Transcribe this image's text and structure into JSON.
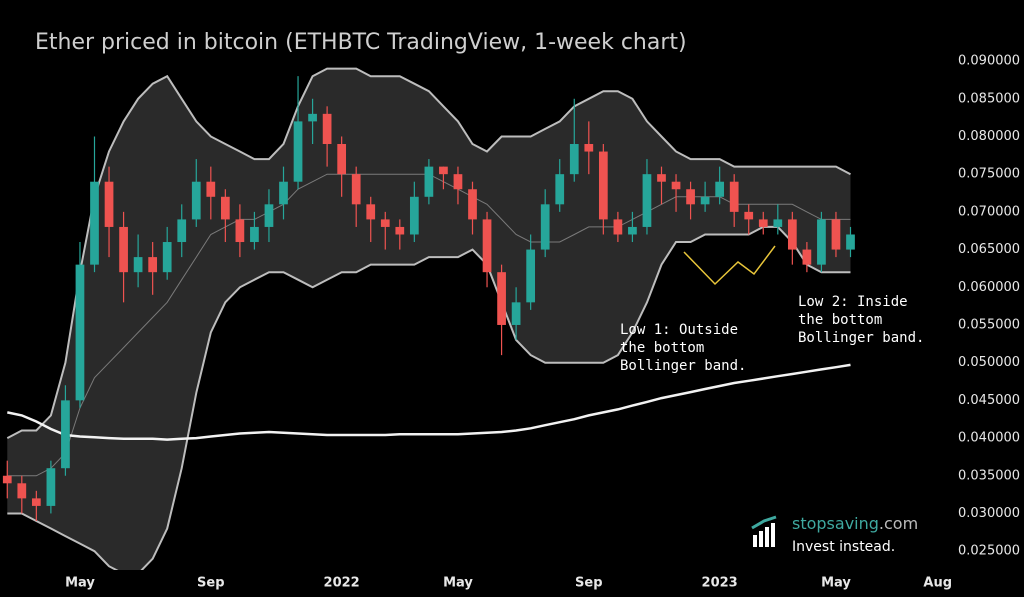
{
  "chart_data": {
    "type": "candlestick",
    "title": "Ether priced in bitcoin (ETHBTC TradingView, 1-week chart)",
    "categories": [
      null,
      null,
      null,
      null,
      null,
      "May",
      null,
      null,
      null,
      null,
      null,
      null,
      null,
      null,
      "Sep",
      null,
      null,
      null,
      null,
      null,
      null,
      null,
      null,
      "2022",
      null,
      null,
      null,
      null,
      null,
      null,
      null,
      "May",
      null,
      null,
      null,
      null,
      null,
      null,
      null,
      null,
      "Sep",
      null,
      null,
      null,
      null,
      null,
      null,
      null,
      null,
      "2023",
      null,
      null,
      null,
      null,
      null,
      null,
      null,
      "May",
      null,
      null,
      null,
      null,
      null,
      null,
      "Aug"
    ],
    "open": [
      0.035,
      0.034,
      0.032,
      0.031,
      0.036,
      0.045,
      0.063,
      0.074,
      0.068,
      0.062,
      0.064,
      0.062,
      0.066,
      0.069,
      0.074,
      0.072,
      0.069,
      0.066,
      0.068,
      0.071,
      0.074,
      0.082,
      0.083,
      0.079,
      0.075,
      0.071,
      0.069,
      0.068,
      0.067,
      0.072,
      0.076,
      0.075,
      0.073,
      0.069,
      0.062,
      0.055,
      0.058,
      0.065,
      0.071,
      0.075,
      0.079,
      0.078,
      0.069,
      0.067,
      0.068,
      0.075,
      0.074,
      0.073,
      0.071,
      0.072,
      0.074,
      0.07,
      0.069,
      0.068,
      0.069,
      0.065,
      0.063,
      0.069,
      0.065,
      null,
      null,
      null,
      null,
      null,
      null
    ],
    "high": [
      0.037,
      0.035,
      0.033,
      0.037,
      0.047,
      0.066,
      0.08,
      0.076,
      0.07,
      0.067,
      0.066,
      0.068,
      0.071,
      0.077,
      0.076,
      0.073,
      0.071,
      0.07,
      0.073,
      0.076,
      0.088,
      0.085,
      0.084,
      0.08,
      0.076,
      0.072,
      0.07,
      0.069,
      0.074,
      0.077,
      0.076,
      0.076,
      0.074,
      0.07,
      0.063,
      0.06,
      0.067,
      0.073,
      0.077,
      0.085,
      0.082,
      0.079,
      0.07,
      0.07,
      0.077,
      0.076,
      0.075,
      0.074,
      0.074,
      0.076,
      0.075,
      0.071,
      0.07,
      0.071,
      0.07,
      0.066,
      0.07,
      0.07,
      0.068,
      null,
      null,
      null,
      null,
      null,
      null
    ],
    "low": [
      0.032,
      0.03,
      0.029,
      0.03,
      0.035,
      0.044,
      0.062,
      0.064,
      0.058,
      0.06,
      0.059,
      0.061,
      0.064,
      0.068,
      0.069,
      0.066,
      0.064,
      0.065,
      0.066,
      0.069,
      0.073,
      0.079,
      0.076,
      0.072,
      0.068,
      0.066,
      0.065,
      0.065,
      0.066,
      0.071,
      0.073,
      0.071,
      0.067,
      0.06,
      0.051,
      0.053,
      0.057,
      0.064,
      0.07,
      0.074,
      0.075,
      0.067,
      0.066,
      0.066,
      0.067,
      0.071,
      0.07,
      0.069,
      0.07,
      0.071,
      0.068,
      0.067,
      0.067,
      0.067,
      0.063,
      0.062,
      0.062,
      0.064,
      0.064,
      null,
      null,
      null,
      null,
      null,
      null
    ],
    "close": [
      0.034,
      0.032,
      0.031,
      0.036,
      0.045,
      0.063,
      0.074,
      0.068,
      0.062,
      0.064,
      0.062,
      0.066,
      0.069,
      0.074,
      0.072,
      0.069,
      0.066,
      0.068,
      0.071,
      0.074,
      0.082,
      0.083,
      0.079,
      0.075,
      0.071,
      0.069,
      0.068,
      0.067,
      0.072,
      0.076,
      0.075,
      0.073,
      0.069,
      0.062,
      0.055,
      0.058,
      0.065,
      0.071,
      0.075,
      0.079,
      0.078,
      0.069,
      0.067,
      0.068,
      0.075,
      0.074,
      0.073,
      0.071,
      0.072,
      0.074,
      0.07,
      0.069,
      0.068,
      0.069,
      0.065,
      0.063,
      0.069,
      0.065,
      0.067,
      null,
      null,
      null,
      null,
      null,
      null
    ],
    "up_color": "#26a69a",
    "down_color": "#ef5350",
    "bands": {
      "upper": [
        0.04,
        0.041,
        0.041,
        0.043,
        0.05,
        0.062,
        0.072,
        0.078,
        0.082,
        0.085,
        0.087,
        0.088,
        0.085,
        0.082,
        0.08,
        0.079,
        0.078,
        0.077,
        0.077,
        0.079,
        0.084,
        0.088,
        0.089,
        0.089,
        0.089,
        0.088,
        0.088,
        0.088,
        0.087,
        0.086,
        0.084,
        0.082,
        0.079,
        0.078,
        0.08,
        0.08,
        0.08,
        0.081,
        0.082,
        0.084,
        0.085,
        0.086,
        0.086,
        0.085,
        0.082,
        0.08,
        0.078,
        0.077,
        0.077,
        0.077,
        0.076,
        0.076,
        0.076,
        0.076,
        0.076,
        0.076,
        0.076,
        0.076,
        0.075,
        null,
        null,
        null,
        null,
        null,
        null
      ],
      "lower": [
        0.03,
        0.03,
        0.029,
        0.028,
        0.027,
        0.026,
        0.025,
        0.023,
        0.022,
        0.022,
        0.024,
        0.028,
        0.036,
        0.046,
        0.054,
        0.058,
        0.06,
        0.061,
        0.062,
        0.062,
        0.061,
        0.06,
        0.061,
        0.062,
        0.062,
        0.063,
        0.063,
        0.063,
        0.063,
        0.064,
        0.064,
        0.064,
        0.065,
        0.063,
        0.058,
        0.053,
        0.051,
        0.05,
        0.05,
        0.05,
        0.05,
        0.05,
        0.051,
        0.054,
        0.058,
        0.063,
        0.066,
        0.066,
        0.067,
        0.067,
        0.067,
        0.067,
        0.068,
        0.068,
        0.066,
        0.063,
        0.062,
        0.062,
        0.062,
        null,
        null,
        null,
        null,
        null,
        null
      ],
      "middle": [
        0.035,
        0.035,
        0.035,
        0.036,
        0.038,
        0.044,
        0.048,
        0.05,
        0.052,
        0.054,
        0.056,
        0.058,
        0.061,
        0.064,
        0.067,
        0.068,
        0.069,
        0.069,
        0.07,
        0.071,
        0.073,
        0.074,
        0.075,
        0.075,
        0.075,
        0.075,
        0.075,
        0.075,
        0.075,
        0.075,
        0.074,
        0.073,
        0.072,
        0.071,
        0.069,
        0.067,
        0.066,
        0.066,
        0.066,
        0.067,
        0.068,
        0.068,
        0.068,
        0.069,
        0.07,
        0.071,
        0.072,
        0.072,
        0.072,
        0.072,
        0.071,
        0.071,
        0.071,
        0.071,
        0.071,
        0.07,
        0.069,
        0.069,
        0.069,
        null,
        null,
        null,
        null,
        null,
        null
      ],
      "fill": "#2a2a2a",
      "edge_color": "#bdbdbd",
      "middle_color": "#7a7a7a"
    },
    "moving_average": {
      "color": "#f2f2f2",
      "values": [
        0.0434,
        0.043,
        0.0422,
        0.0412,
        0.0404,
        0.0402,
        0.0401,
        0.04,
        0.0399,
        0.0399,
        0.0399,
        0.0398,
        0.0399,
        0.04,
        0.0402,
        0.0404,
        0.0406,
        0.0407,
        0.0408,
        0.0407,
        0.0406,
        0.0405,
        0.0404,
        0.0404,
        0.0404,
        0.0404,
        0.0404,
        0.0405,
        0.0405,
        0.0405,
        0.0405,
        0.0405,
        0.0406,
        0.0407,
        0.0408,
        0.041,
        0.0413,
        0.0417,
        0.0421,
        0.0425,
        0.043,
        0.0434,
        0.0438,
        0.0443,
        0.0448,
        0.0453,
        0.0457,
        0.0461,
        0.0465,
        0.0469,
        0.0473,
        0.0476,
        0.0479,
        0.0482,
        0.0485,
        0.0488,
        0.0491,
        0.0494,
        0.0497,
        null,
        null,
        null,
        null,
        null,
        null
      ]
    },
    "ylim": [
      0.0225,
      0.0981
    ],
    "yticks": [
      {
        "value": 0.025,
        "label": "0.025000"
      },
      {
        "value": 0.03,
        "label": "0.030000"
      },
      {
        "value": 0.035,
        "label": "0.035000"
      },
      {
        "value": 0.04,
        "label": "0.040000"
      },
      {
        "value": 0.045,
        "label": "0.045000"
      },
      {
        "value": 0.05,
        "label": "0.050000"
      },
      {
        "value": 0.055,
        "label": "0.055000"
      },
      {
        "value": 0.06,
        "label": "0.060000"
      },
      {
        "value": 0.065,
        "label": "0.065000"
      },
      {
        "value": 0.07,
        "label": "0.070000"
      },
      {
        "value": 0.075,
        "label": "0.075000"
      },
      {
        "value": 0.08,
        "label": "0.080000"
      },
      {
        "value": 0.085,
        "label": "0.085000"
      },
      {
        "value": 0.09,
        "label": "0.090000"
      }
    ],
    "annotations": [
      {
        "lines": [
          "Low 1: Outside",
          "the bottom",
          "Bollinger band."
        ]
      },
      {
        "lines": [
          "Low 2: Inside",
          "the bottom",
          "Bollinger band."
        ]
      }
    ],
    "logo": {
      "name": "stopsaving",
      "suffix": ".com",
      "tagline": "Invest instead."
    }
  }
}
